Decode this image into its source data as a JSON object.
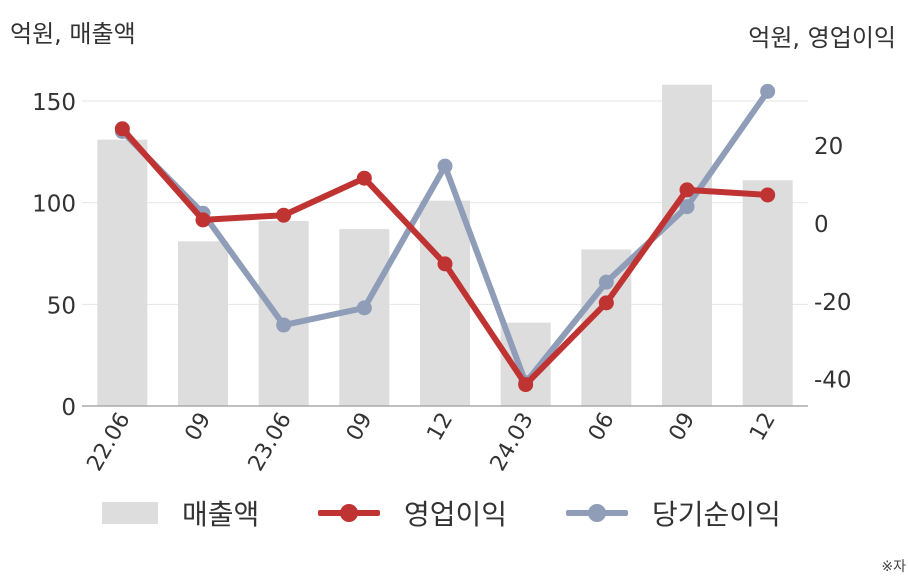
{
  "chart_data": {
    "type": "bar+line",
    "categories": [
      "22.06",
      "09",
      "23.06",
      "09",
      "12",
      "24.03",
      "06",
      "09",
      "12"
    ],
    "left_axis": {
      "label": "억원, 매출액",
      "ticks": [
        "0",
        "50",
        "100",
        "150"
      ],
      "ylim": [
        0,
        180
      ]
    },
    "right_axis": {
      "label": "억원, 영업이익",
      "ticks": [
        "-40",
        "-20",
        "0",
        "20"
      ],
      "ylim": [
        -47,
        47
      ]
    },
    "series": [
      {
        "name": "매출액",
        "kind": "bar",
        "axis": "left",
        "color": "#dddddd",
        "values": [
          131,
          81,
          91,
          87,
          101,
          41,
          77,
          158,
          111
        ]
      },
      {
        "name": "영업이익",
        "kind": "line",
        "axis": "right",
        "color": "#c03333",
        "values": [
          24.2,
          0.8,
          2.0,
          11.5,
          -10.5,
          -41.5,
          -20.5,
          8.5,
          7.2
        ]
      },
      {
        "name": "당기순이익",
        "kind": "line",
        "axis": "right",
        "color": "#8f9db8",
        "values": [
          23.5,
          2.5,
          -26.2,
          -21.8,
          14.6,
          -41.0,
          -15.2,
          4.2,
          33.8
        ]
      }
    ],
    "legend": [
      "매출액",
      "영업이익",
      "당기순이익"
    ],
    "legend_position": "bottom",
    "grid": true
  },
  "footnote": "※자"
}
